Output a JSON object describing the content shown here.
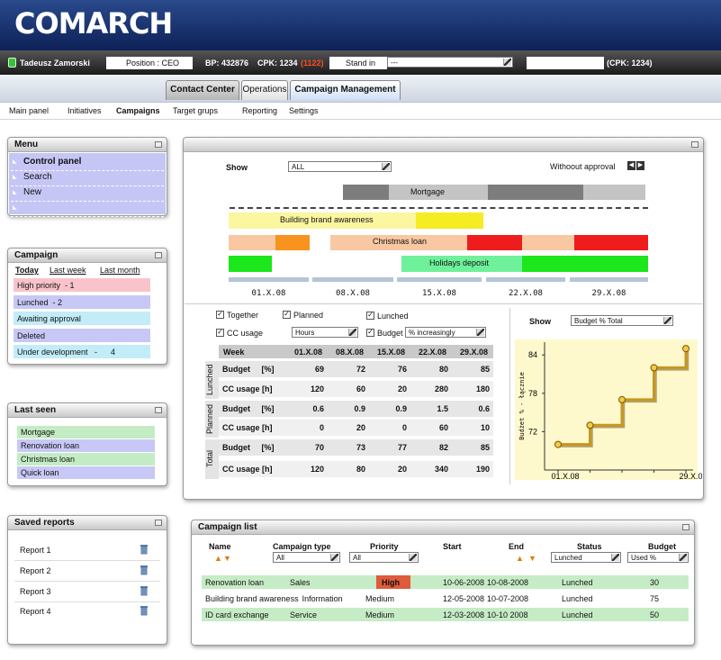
{
  "header": {
    "logo": "COMARCH",
    "user": "Tadeusz Zamorski",
    "position": "Position : CEO",
    "bp": "BP: 432876",
    "cpk": "CPK: 1234",
    "cpk_extra": "(1122)",
    "stand_in": "Stand in",
    "stand_in_value": "---",
    "cpk2": "(CPK: 1234)"
  },
  "tabs": [
    "Contact Center",
    "Operations",
    "Campaign Management"
  ],
  "nav": [
    "Main panel",
    "Initiatives",
    "Campaigns",
    "Target grups",
    "Reporting",
    "Settings"
  ],
  "menu": {
    "title": "Menu",
    "items": [
      "Control panel",
      "Search",
      "New"
    ]
  },
  "campaign": {
    "title": "Campaign",
    "periods": [
      "Today",
      "Last week",
      "Last month"
    ],
    "items": [
      "High priority  - 1",
      "Lunched  - 2",
      "Awaiting approval",
      "Deleted",
      "Under development   -      4"
    ]
  },
  "last_seen": {
    "title": "Last seen",
    "items": [
      "Mortgage",
      "Renovation loan",
      "Christmas loan",
      "Quick loan"
    ]
  },
  "saved_reports": {
    "title": "Saved reports",
    "items": [
      "Report 1",
      "Report 2",
      "Report 3",
      "Report 4"
    ]
  },
  "timeline": {
    "show_label": "Show",
    "show_value": "ALL",
    "approval": "Withoout approval",
    "bars": [
      "Mortgage",
      "Building brand awareness",
      "Christmas loan",
      "Holidays deposit"
    ],
    "dates": [
      "01.X.08",
      "08.X.08",
      "15.X.08",
      "22.X.08",
      "29.X.08"
    ]
  },
  "options": {
    "checks": [
      "Together",
      "Planned",
      "Lunched",
      "CC usage",
      "Budget"
    ],
    "cc_unit": "Hours",
    "budget_mode": "% increasingly"
  },
  "table": {
    "columns": [
      "Week",
      "01.X.08",
      "08.X.08",
      "15.X.08",
      "22.X.08",
      "29.X.08"
    ],
    "groups": [
      {
        "name": "Lunched",
        "rows": [
          {
            "label": "Budget     [%]",
            "values": [
              69,
              72,
              76,
              80,
              85
            ]
          },
          {
            "label": "CC usage [h]",
            "values": [
              120,
              60,
              20,
              280,
              180
            ]
          }
        ]
      },
      {
        "name": "Planned",
        "rows": [
          {
            "label": "Budget     [%]",
            "values": [
              0.6,
              0.9,
              0.9,
              1.5,
              0.6
            ]
          },
          {
            "label": "CC usage [h]",
            "values": [
              0,
              20,
              0,
              60,
              10
            ]
          }
        ]
      },
      {
        "name": "Total",
        "rows": [
          {
            "label": "Budget     [%]",
            "values": [
              70,
              73,
              77,
              82,
              85
            ]
          },
          {
            "label": "CC usage [h]",
            "values": [
              120,
              80,
              20,
              340,
              190
            ]
          }
        ]
      }
    ]
  },
  "chart_data": {
    "type": "step",
    "show_label": "Show",
    "show_value": "Budget % Total",
    "y_label": "Budżet % - łącznie",
    "categories": [
      "01.X.08",
      null,
      null,
      null,
      "29.X.08"
    ],
    "values": [
      70,
      73,
      77,
      82,
      85
    ],
    "color": "#c8961e",
    "ylim": [
      66,
      86
    ],
    "yticks": [
      72,
      78,
      84
    ]
  },
  "campaign_list": {
    "title": "Campaign list",
    "columns": [
      "Name",
      "Campaign type",
      "Priority",
      "Start",
      "End",
      "Status",
      "Budget"
    ],
    "filters": {
      "type": "All",
      "priority": "All",
      "status": "Lunched",
      "budget": "Used %"
    },
    "rows": [
      [
        "Renovation loan",
        "Sales",
        "High",
        "10-06-2008",
        "10-08-2008",
        "Lunched",
        30
      ],
      [
        "Building brand awareness",
        "Information",
        "Medium",
        "12-05-2008",
        "10-07-2008",
        "Lunched",
        75
      ],
      [
        "ID card exchange",
        "Service",
        "Medium",
        "12-03-2008",
        "10-10 2008",
        "Lunched",
        50
      ]
    ]
  }
}
